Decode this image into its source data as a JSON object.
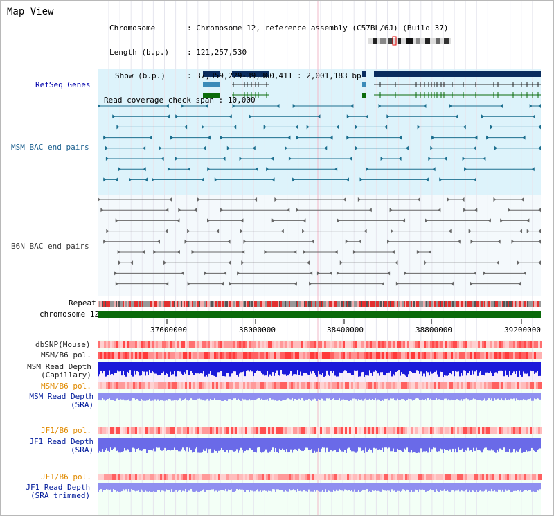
{
  "title": "Map View",
  "header": {
    "chromosome_label": "Chromosome",
    "chromosome_value": "Chromosome 12, reference assembly (C57BL/6J) (Build 37)",
    "length_label": "Length (b.p.)",
    "length_value": "121,257,530",
    "show_label": "Show (b.p.)",
    "show_value": "37,359,229-39,360,411 : 2,001,183 bp",
    "coverage_label": "Read coverage check span",
    "coverage_value": "10,000"
  },
  "lanes": {
    "refseq": "RefSeq Genes",
    "msm_bac": "MSM BAC end pairs",
    "b6n_bac": "B6N BAC end pairs",
    "repeat": "Repeat",
    "chromosome": "chromosome 12",
    "dbsnp": "dbSNP(Mouse)",
    "msm_b6_pol": "MSM/B6 pol.",
    "msm_depth_cap_1": "MSM Read Depth",
    "msm_depth_cap_2": "(Capillary)",
    "msm_b6_pol2": "MSM/B6 pol.",
    "msm_depth_sra_1": "MSM Read Depth",
    "msm_depth_sra_2": "(SRA)",
    "jf1_b6_pol": "JF1/B6 pol.",
    "jf1_depth_1": "JF1 Read Depth",
    "jf1_depth_2": "(SRA)",
    "jf1_b6_pol2": "JF1/B6 pol.",
    "jf1_trim_1": "JF1 Read Depth",
    "jf1_trim_2": "(SRA trimmed)"
  },
  "axis_ticks": [
    "37600000",
    "38000000",
    "38400000",
    "38800000",
    "39200000"
  ],
  "colors": {
    "refseq_bg": "#dff1fb",
    "bac_bg": "#ddf3fb",
    "gene_dark": "#0a2c5e",
    "gene_mid": "#3c8bb8",
    "gene_green": "#0b6b0b",
    "chromosome_bar": "#0a6a0a",
    "depth_blue": "#1b1bd9",
    "depth_light": "#8f8ff0",
    "snp_red": "#ff4a4a",
    "pol_orange": "#e08a00"
  }
}
